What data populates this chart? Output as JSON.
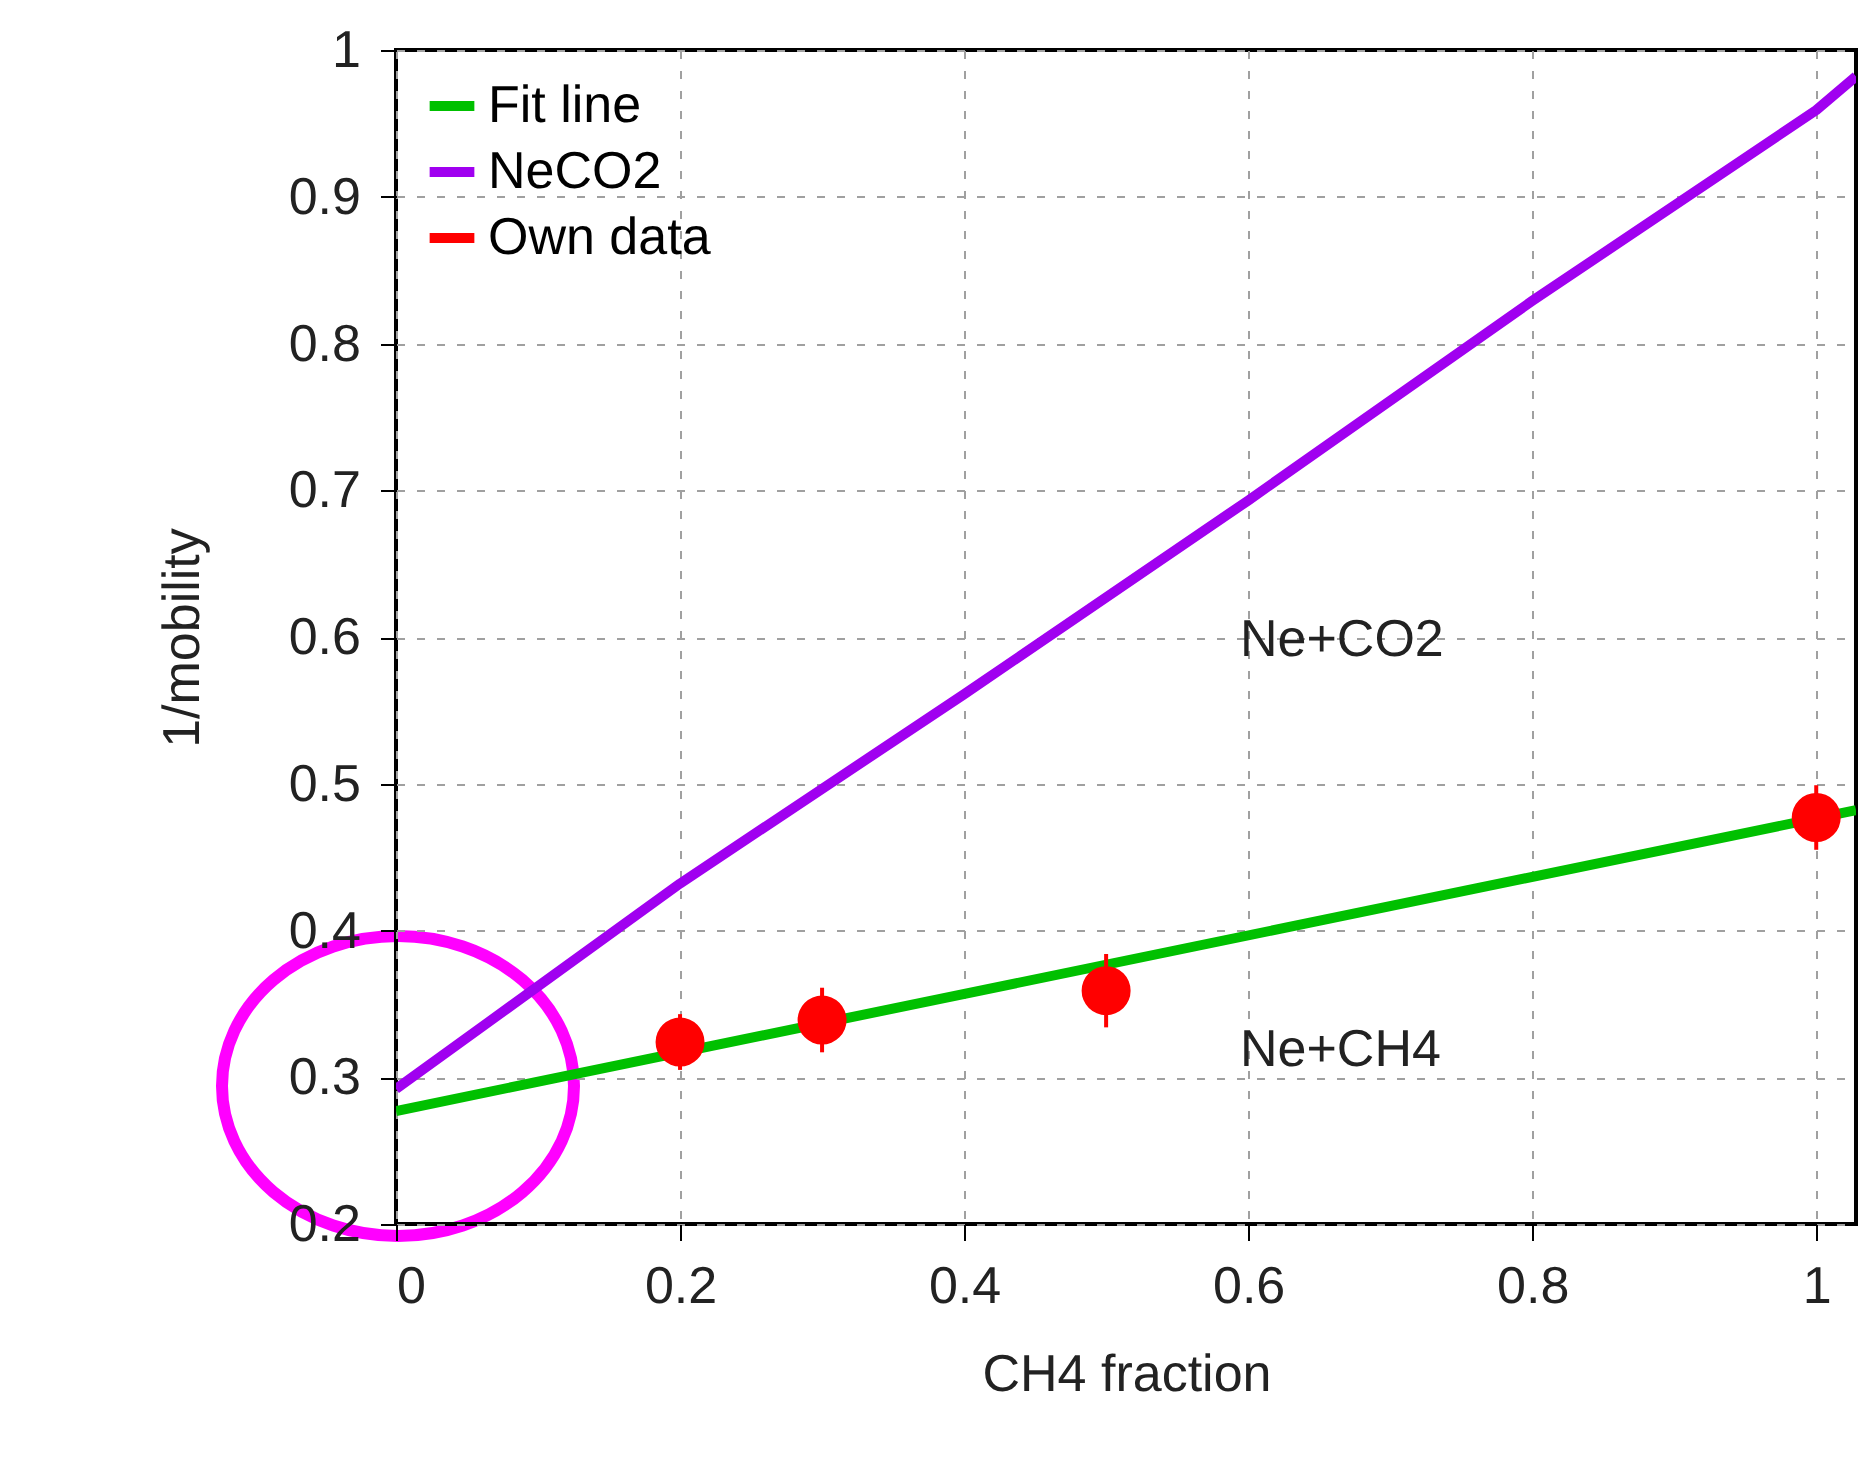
{
  "chart_data": {
    "type": "line",
    "xlabel": "CH4 fraction",
    "ylabel": "1/mobility",
    "xlim": [
      0,
      1.028
    ],
    "ylim": [
      0.2,
      1
    ],
    "xticks": [
      0,
      0.2,
      0.4,
      0.6,
      0.8,
      1
    ],
    "yticks": [
      0.2,
      0.3,
      0.4,
      0.5,
      0.6,
      0.7,
      0.8,
      0.9,
      1
    ],
    "grid": true,
    "legend": "top left",
    "series": [
      {
        "name": "Fit line",
        "color": "#00c000",
        "x": [
          0,
          1.028
        ],
        "values": [
          0.277,
          0.482
        ]
      },
      {
        "name": "NeCO2",
        "color": "#a000f0",
        "x": [
          0,
          0.2,
          0.4,
          0.6,
          0.8,
          1,
          1.028
        ],
        "values": [
          0.292,
          0.432,
          0.561,
          0.693,
          0.829,
          0.959,
          0.982
        ]
      },
      {
        "name": "Own data",
        "type": "scatter",
        "marker": "circle",
        "color": "#ff0000",
        "x": [
          0.2,
          0.3,
          0.5,
          1
        ],
        "values": [
          0.324,
          0.339,
          0.359,
          0.477
        ],
        "errors": [
          0.019,
          0.022,
          0.025,
          0.022
        ]
      }
    ],
    "annotations": [
      "Ne+CO2",
      "Ne+CH4"
    ]
  }
}
